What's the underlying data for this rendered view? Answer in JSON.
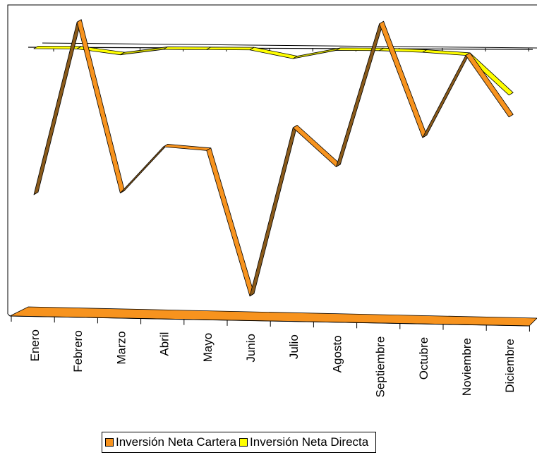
{
  "chart_data": {
    "type": "line",
    "title": "",
    "xlabel": "",
    "ylabel": "",
    "categories": [
      "Enero",
      "Febrero",
      "Marzo",
      "Abril",
      "Mayo",
      "Junio",
      "Julio",
      "Agosto",
      "Septiembre",
      "Octubre",
      "Noviembre",
      "Diciembre"
    ],
    "series": [
      {
        "name": "Inversión Neta Cartera",
        "color": "#f7931e",
        "values": [
          -210,
          35,
          -207,
          -141,
          -146,
          -352,
          -113,
          -168,
          35,
          -126,
          -9,
          -96
        ]
      },
      {
        "name": "Inversión Neta Directa",
        "color": "#ffff00",
        "values": [
          -3,
          -3,
          -11,
          -3,
          -3,
          -3,
          -15,
          -3,
          -3,
          -5,
          -9,
          -65
        ]
      }
    ],
    "grid": false,
    "legend_position": "bottom"
  },
  "legend": {
    "items": [
      {
        "label": "Inversión Neta Cartera",
        "color": "#f7931e"
      },
      {
        "label": "Inversión Neta Directa",
        "color": "#ffff00"
      }
    ]
  }
}
